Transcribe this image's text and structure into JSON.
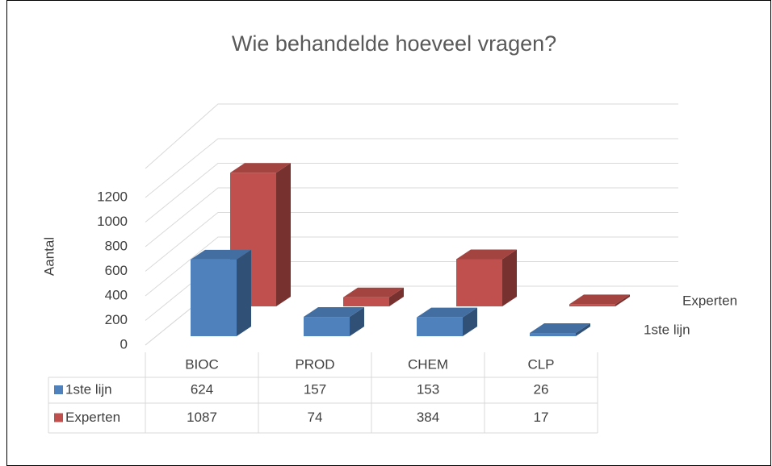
{
  "chart_data": {
    "type": "bar3d",
    "title": "Wie behandelde hoeveel vragen?",
    "y_label": "Aantal",
    "categories": [
      "BIOC",
      "PROD",
      "CHEM",
      "CLP"
    ],
    "series": [
      {
        "name": "1ste lijn",
        "color": "#4f81bd",
        "values": [
          624,
          157,
          153,
          26
        ]
      },
      {
        "name": "Experten",
        "color": "#c0504d",
        "values": [
          1087,
          74,
          384,
          17
        ]
      }
    ],
    "ylim": [
      0,
      1200
    ],
    "yticks": [
      0,
      200,
      400,
      600,
      800,
      1000,
      1200
    ],
    "grid": true,
    "data_table": true
  }
}
